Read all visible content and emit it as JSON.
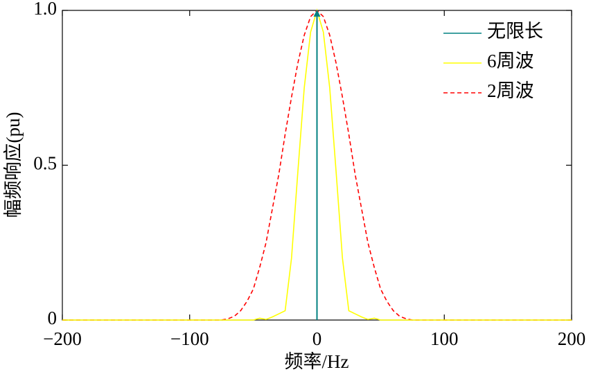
{
  "chart_data": {
    "type": "line",
    "xlabel": "频率/Hz",
    "ylabel": "幅频响应(pu)",
    "x": [
      -200,
      -100,
      -80,
      -75,
      -70,
      -65,
      -60,
      -55,
      -50,
      -45,
      -40,
      -35,
      -30,
      -25,
      -20,
      -15,
      -10,
      -5,
      0,
      5,
      10,
      15,
      20,
      25,
      30,
      35,
      40,
      45,
      50,
      55,
      60,
      65,
      70,
      75,
      80,
      100,
      200
    ],
    "series": [
      {
        "name": "无限长",
        "color": "#008080",
        "line_style": "solid",
        "arrow": true,
        "x": [
          0,
          0
        ],
        "values": [
          0,
          1
        ]
      },
      {
        "name": "6周波",
        "color": "#ffff00",
        "line_style": "solid",
        "values": [
          0,
          0,
          0,
          0,
          0,
          0,
          0,
          0,
          0,
          0.006,
          0.002,
          0.01,
          0.02,
          0.03,
          0.2,
          0.48,
          0.75,
          0.93,
          1,
          0.93,
          0.75,
          0.48,
          0.2,
          0.03,
          0.02,
          0.01,
          0.002,
          0.006,
          0,
          0,
          0,
          0,
          0,
          0,
          0,
          0,
          0
        ]
      },
      {
        "name": "2周波",
        "color": "#ff0000",
        "line_style": "dashed",
        "values": [
          0,
          0,
          0,
          0,
          0.004,
          0.012,
          0.03,
          0.06,
          0.1,
          0.17,
          0.25,
          0.36,
          0.47,
          0.6,
          0.72,
          0.83,
          0.92,
          0.98,
          1,
          0.98,
          0.92,
          0.83,
          0.72,
          0.6,
          0.47,
          0.36,
          0.25,
          0.17,
          0.1,
          0.06,
          0.03,
          0.012,
          0.004,
          0,
          0,
          0,
          0
        ]
      }
    ],
    "xlim": [
      -200,
      200
    ],
    "xticks": [
      {
        "value": -200,
        "label": "−200"
      },
      {
        "value": -100,
        "label": "−100"
      },
      0,
      100,
      200
    ],
    "ylim": [
      0,
      1
    ],
    "yticks": [
      0,
      0.5,
      {
        "value": 1,
        "label": "1.0"
      }
    ],
    "legend": "upper right"
  }
}
